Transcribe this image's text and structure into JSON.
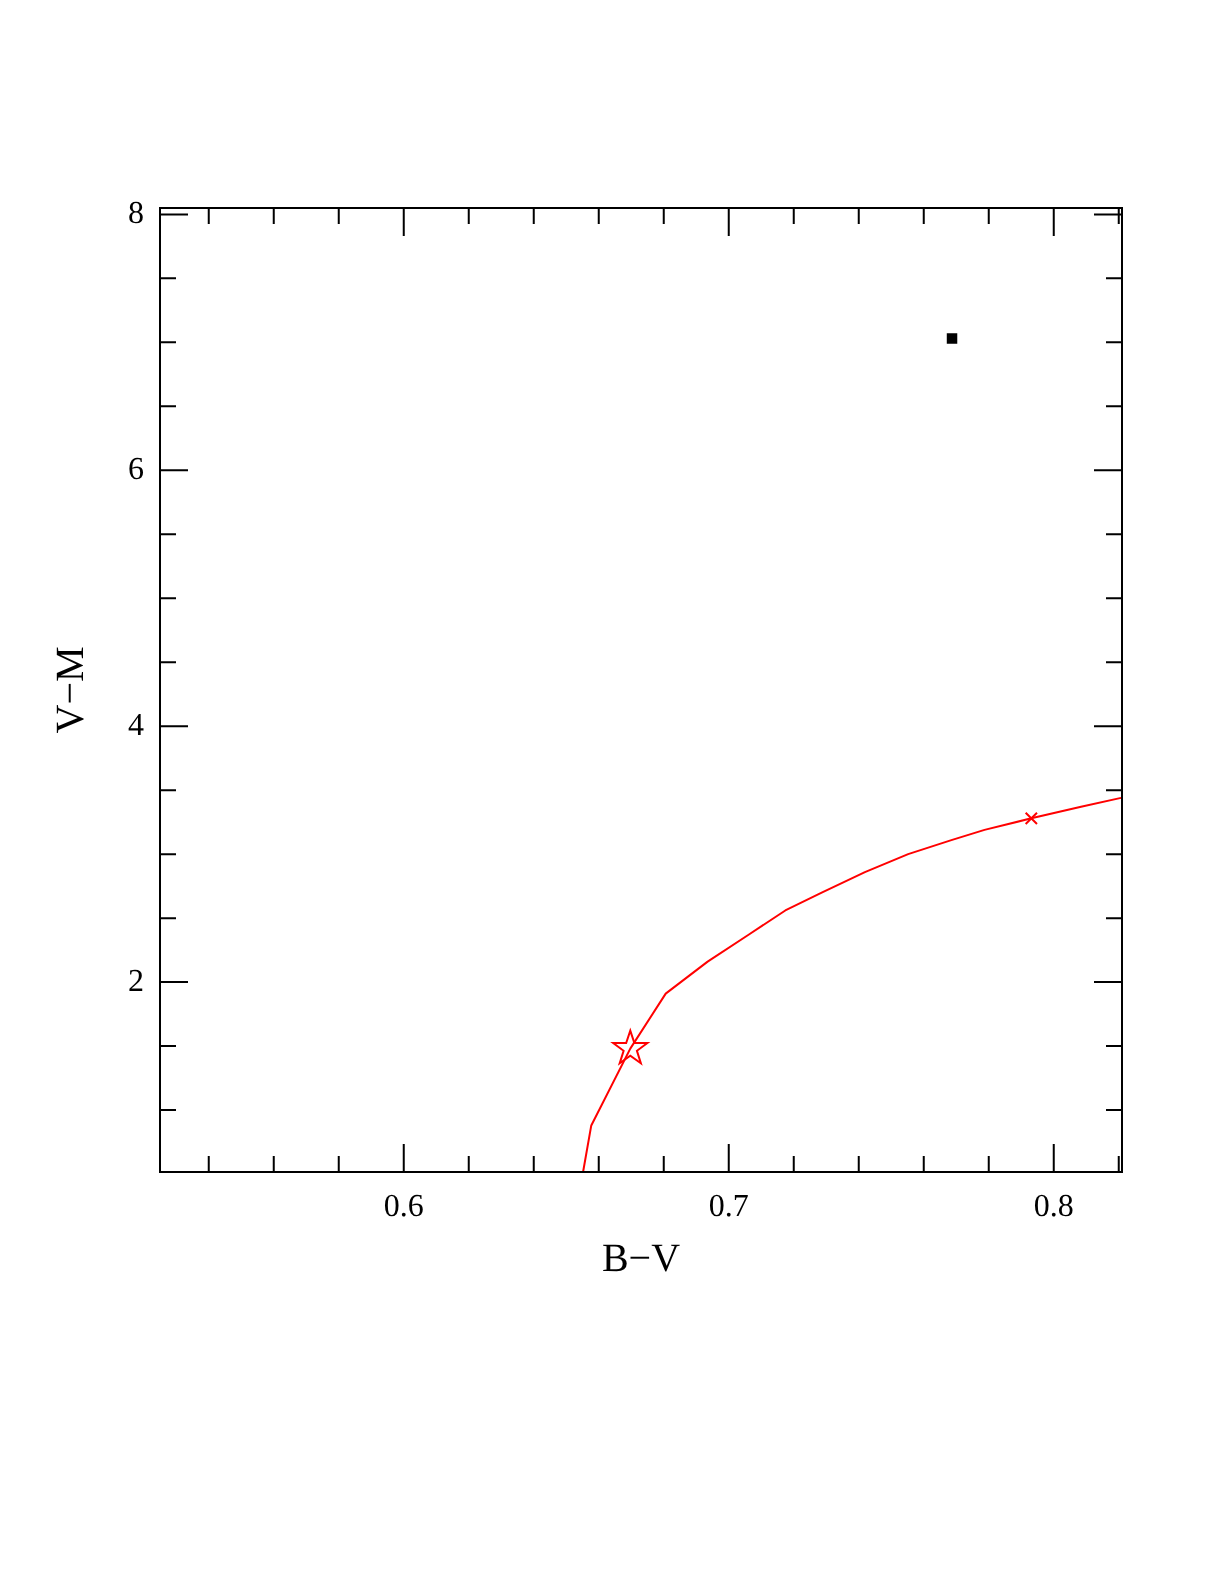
{
  "chart_data": {
    "type": "line",
    "xlabel": "B−V",
    "ylabel": "V−M",
    "xlim": [
      0.525,
      0.821
    ],
    "ylim": [
      0.516,
      8.05
    ],
    "xticks": [
      {
        "value": 0.54,
        "label": null
      },
      {
        "value": 0.56,
        "label": null
      },
      {
        "value": 0.58,
        "label": null
      },
      0.6,
      {
        "value": 0.62,
        "label": null
      },
      {
        "value": 0.64,
        "label": null
      },
      {
        "value": 0.66,
        "label": null
      },
      {
        "value": 0.68,
        "label": null
      },
      0.7,
      {
        "value": 0.72,
        "label": null
      },
      {
        "value": 0.74,
        "label": null
      },
      {
        "value": 0.76,
        "label": null
      },
      {
        "value": 0.78,
        "label": null
      },
      0.8,
      {
        "value": 0.82,
        "label": null
      }
    ],
    "yticks": [
      {
        "value": 1,
        "label": null
      },
      {
        "value": 1.5,
        "label": null
      },
      2,
      {
        "value": 2.5,
        "label": null
      },
      {
        "value": 3,
        "label": null
      },
      {
        "value": 3.5,
        "label": null
      },
      4,
      {
        "value": 4.5,
        "label": null
      },
      {
        "value": 5,
        "label": null
      },
      {
        "value": 5.5,
        "label": null
      },
      6,
      {
        "value": 6.5,
        "label": null
      },
      {
        "value": 7,
        "label": null
      },
      {
        "value": 7.5,
        "label": null
      },
      8
    ],
    "grid": false,
    "legend": false,
    "series": [
      {
        "color": "#ff0000",
        "marker": "none",
        "x": [
          0.6552,
          0.6577,
          0.6697,
          0.6806,
          0.6935,
          0.7061,
          0.7174,
          0.7286,
          0.7419,
          0.7552,
          0.7685,
          0.7787,
          0.7931,
          0.8084,
          0.8207
        ],
        "values": [
          0.52,
          0.88,
          1.48,
          1.91,
          2.16,
          2.37,
          2.56,
          2.7,
          2.86,
          3.0,
          3.11,
          3.19,
          3.28,
          3.37,
          3.44
        ]
      },
      {
        "type": "scatter",
        "color": "#ff0000",
        "marker": "star",
        "x": [
          0.6697
        ],
        "values": [
          1.48
        ]
      },
      {
        "type": "scatter",
        "color": "#ff0000",
        "marker": "cross",
        "x": [
          0.7931
        ],
        "values": [
          3.28
        ]
      },
      {
        "type": "scatter",
        "color": "#000000",
        "marker": "square",
        "x": [
          0.7687
        ],
        "values": [
          7.03
        ]
      }
    ]
  }
}
